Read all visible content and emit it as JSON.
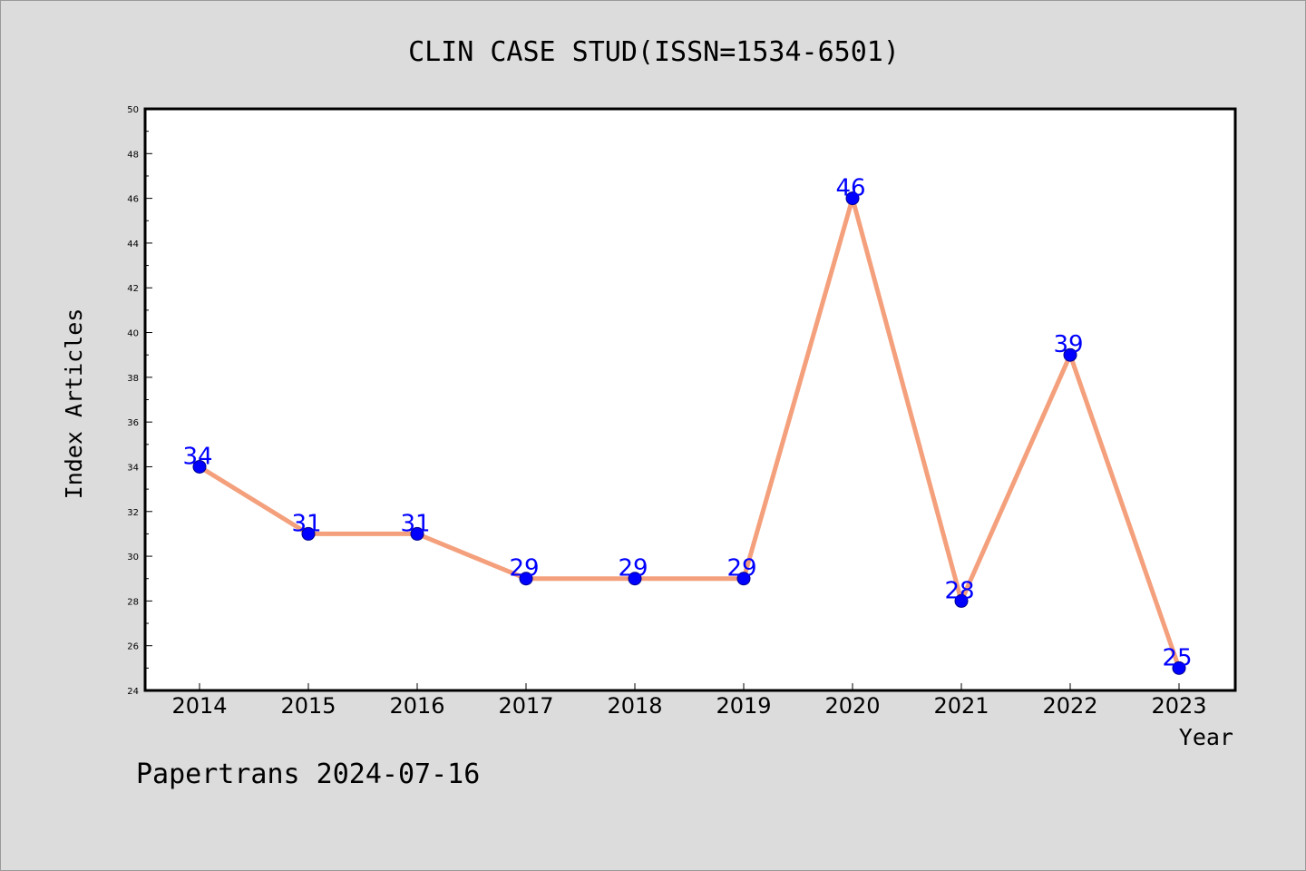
{
  "chart_data": {
    "type": "line",
    "title": "CLIN CASE STUD(ISSN=1534-6501)",
    "xlabel": "Year",
    "ylabel": "Index Articles",
    "categories": [
      "2014",
      "2015",
      "2016",
      "2017",
      "2018",
      "2019",
      "2020",
      "2021",
      "2022",
      "2023"
    ],
    "series": [
      {
        "values": [
          34,
          31,
          31,
          29,
          29,
          29,
          46,
          28,
          39,
          25
        ]
      }
    ],
    "ylim": [
      24,
      50
    ],
    "y_ticks": [
      24,
      26,
      28,
      30,
      32,
      34,
      36,
      38,
      40,
      42,
      44,
      46,
      48,
      50
    ],
    "grid": false,
    "legend": "none",
    "data_labels": true,
    "colors": {
      "line": "#f4a07c",
      "marker": "#0000ff",
      "marker_edge": "#00008b",
      "data_label": "#0000ff",
      "plot_background": "#ffffff",
      "figure_background": "#dcdcdc"
    }
  },
  "footer": {
    "text": "Papertrans 2024-07-16"
  }
}
